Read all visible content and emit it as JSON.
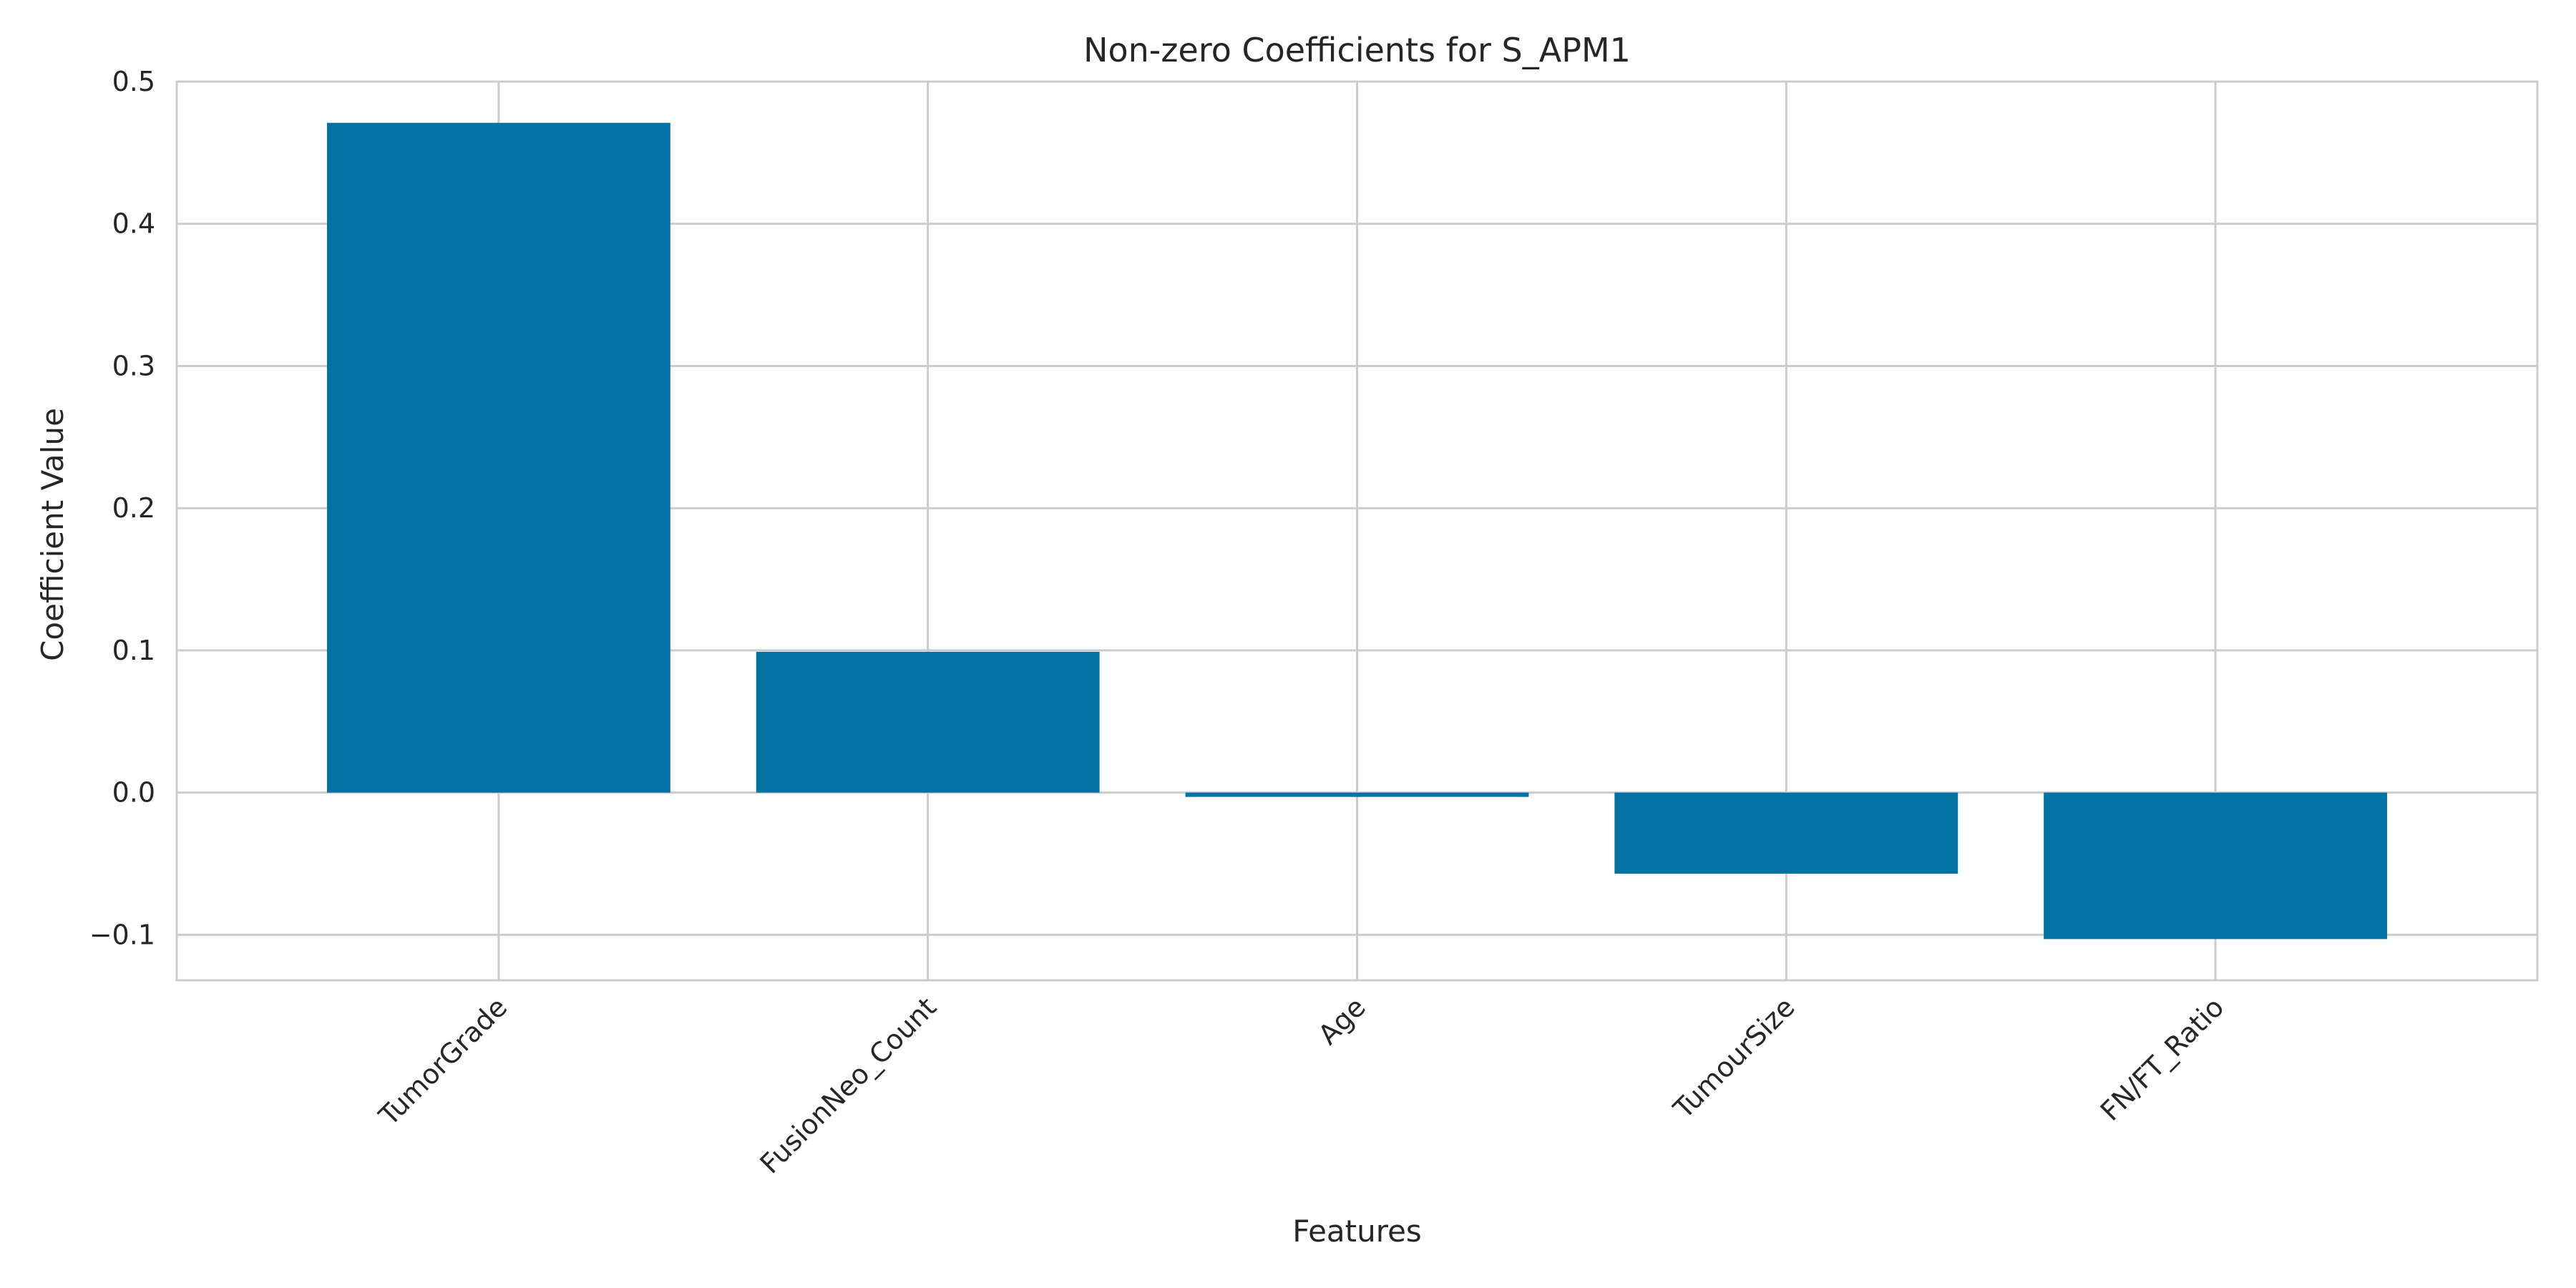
{
  "chart_data": {
    "type": "bar",
    "title": "Non-zero Coefficients for S_APM1",
    "xlabel": "Features",
    "ylabel": "Coefficient Value",
    "categories": [
      "TumorGrade",
      "FusionNeo_Count",
      "Age",
      "TumourSize",
      "FN/FT_Ratio"
    ],
    "values": [
      0.471,
      0.099,
      -0.003,
      -0.057,
      -0.103
    ],
    "ylim": [
      -0.132,
      0.5
    ],
    "yticks": [
      -0.1,
      0.0,
      0.1,
      0.2,
      0.3,
      0.4,
      0.5
    ],
    "ytick_labels": [
      "−0.1",
      "0.0",
      "0.1",
      "0.2",
      "0.3",
      "0.4",
      "0.5"
    ],
    "grid": true,
    "bar_color": "#0272a2",
    "grid_color": "#cccccc",
    "tick_label_rotation": "45 degrees"
  }
}
